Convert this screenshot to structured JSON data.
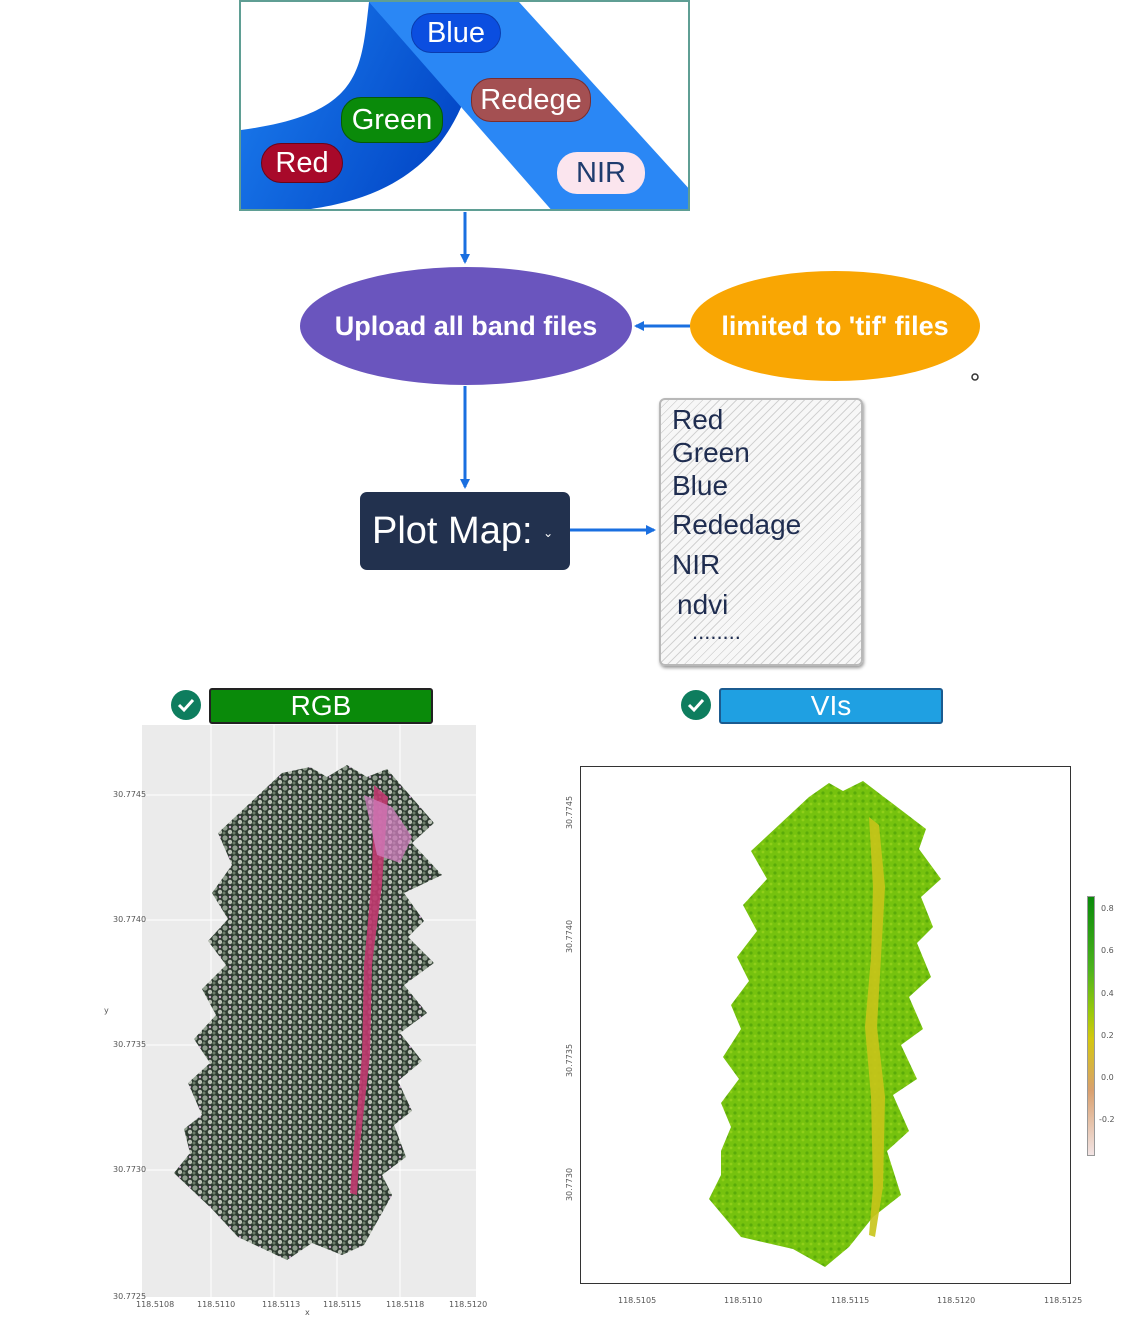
{
  "bands_panel": {
    "labels": {
      "blue": "Blue",
      "redege": "Redege",
      "green": "Green",
      "red": "Red",
      "nir": "NIR"
    }
  },
  "flow": {
    "upload_label": "Upload all band files",
    "limit_label": "limited to 'tif' files",
    "plot_label": "Plot Map:"
  },
  "plot_options": [
    "Red",
    "Green",
    "Blue",
    "Rededage",
    "NIR",
    "ndvi",
    "........"
  ],
  "outputs": {
    "rgb_label": "RGB",
    "vis_label": "VIs"
  },
  "rgb_map": {
    "y_ticks": [
      "30.7745",
      "30.7740",
      "30.7735",
      "30.7730",
      "30.7725"
    ],
    "x_ticks": [
      "118.5108",
      "118.5110",
      "118.5113",
      "118.5115",
      "118.5118",
      "118.5120"
    ],
    "xlabel": "x",
    "ylabel": "y"
  },
  "vi_map": {
    "y_ticks": [
      "30.7745",
      "30.7740",
      "30.7735",
      "30.7730"
    ],
    "x_ticks": [
      "118.5105",
      "118.5110",
      "118.5115",
      "118.5120",
      "118.5125"
    ],
    "legend_ticks": [
      "0.8",
      "0.6",
      "0.4",
      "0.2",
      "0.0",
      "-0.2"
    ]
  },
  "colors": {
    "band_blue": "#1f83f0",
    "upload_ellipse": "#6a55be",
    "limit_ellipse": "#f9a603",
    "plot_box": "#22314e",
    "arrow": "#1a6fe0",
    "rgb_badge": "#0a8a0a",
    "vis_badge": "#1fa0e2",
    "check": "#0e7d5e"
  }
}
